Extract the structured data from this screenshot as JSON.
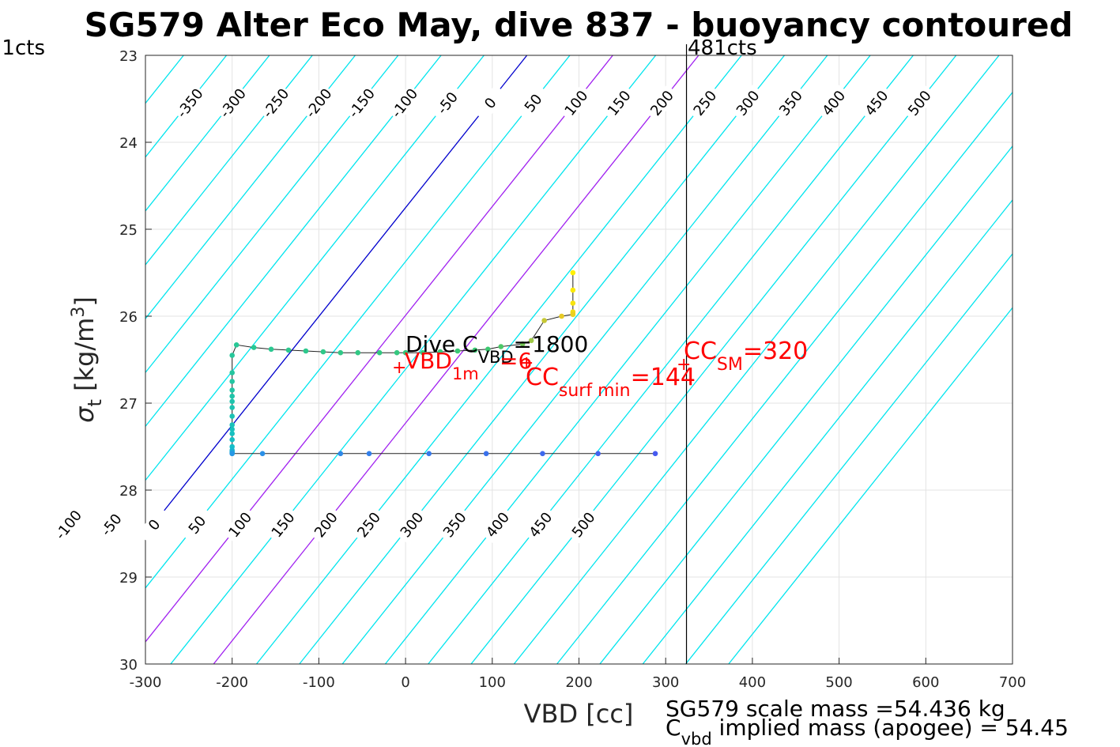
{
  "chart_data": {
    "type": "scatter",
    "title": "SG579 Alter Eco May, dive 837 - buoyancy contoured",
    "xlabel": "VBD [cc]",
    "ylabel_symbol": "σ",
    "ylabel_sub": "t",
    "ylabel_text": "[kg/m",
    "ylabel_sup": "3",
    "ylabel_close": "]",
    "xlim": [
      -300,
      700
    ],
    "ylim": [
      23,
      30
    ],
    "y_reversed": true,
    "grid": true,
    "xticks": [
      -300,
      -200,
      -100,
      0,
      100,
      200,
      300,
      400,
      500,
      600,
      700
    ],
    "yticks": [
      23,
      24,
      25,
      26,
      27,
      28,
      29,
      30
    ],
    "counts_left_label": "1cts",
    "counts_right_label": "481cts",
    "vline_vbd": 324,
    "contours": {
      "values": [
        -450,
        -400,
        -350,
        -300,
        -250,
        -200,
        -150,
        -100,
        -50,
        0,
        50,
        100,
        150,
        200,
        250,
        300,
        350,
        400,
        450,
        500,
        550,
        600,
        650,
        700,
        750,
        800
      ],
      "top_labels": [
        -350,
        -300,
        -250,
        -200,
        -150,
        -100,
        -50,
        0,
        50,
        100,
        150,
        200,
        250,
        300,
        350,
        400,
        450,
        500
      ],
      "bottom_labels": [
        -100,
        -50,
        0,
        50,
        100,
        150,
        200,
        250,
        300,
        350,
        400,
        450,
        500
      ],
      "zero_color": "#0000cd",
      "highlight_color": "#a020f0",
      "highlight_values": [
        100,
        200
      ],
      "other_color": "#00e5ee"
    },
    "series": [
      {
        "x": [
          193,
          193,
          193,
          193,
          193,
          193,
          180,
          160,
          145,
          135,
          110,
          95,
          80,
          60,
          40,
          20,
          0,
          -10,
          -30,
          -55,
          -75,
          -95,
          -115,
          -135,
          -155,
          -175,
          -195,
          -200,
          -200,
          -200,
          -200,
          -200,
          -200,
          -200,
          -200,
          -200,
          -200,
          -200,
          -200,
          -200,
          -200,
          -200,
          -200,
          -200,
          -200,
          -165,
          -75,
          -42,
          27,
          93,
          158,
          222,
          288
        ],
        "y": [
          25.5,
          25.7,
          25.85,
          25.95,
          25.97,
          25.98,
          26.0,
          26.05,
          26.28,
          26.32,
          26.35,
          26.38,
          26.39,
          26.4,
          26.41,
          26.42,
          26.42,
          26.42,
          26.42,
          26.42,
          26.42,
          26.41,
          26.4,
          26.39,
          26.38,
          26.36,
          26.33,
          26.45,
          26.65,
          26.75,
          26.85,
          26.92,
          26.98,
          27.05,
          27.15,
          27.25,
          27.3,
          27.35,
          27.42,
          27.5,
          27.54,
          27.56,
          27.57,
          27.58,
          27.58,
          27.58,
          27.58,
          27.58,
          27.58,
          27.58,
          27.58,
          27.58,
          27.58
        ]
      }
    ],
    "annotations": {
      "dive_c_pre": "Dive C",
      "dive_c_sub": "VBD",
      "dive_c_post": "=1800",
      "vbd1m_marker": "+",
      "vbd1m_main": "VBD",
      "vbd1m_sub": "1m",
      "vbd1m_tail": "=6",
      "cc_surf_marker": "+",
      "cc_surf_main": "CC",
      "cc_surf_sub": "surf min",
      "cc_surf_val": "=144",
      "cc_sm_marker": "+",
      "cc_sm_main": "CC",
      "cc_sm_sub": "SM",
      "cc_sm_val": "=320",
      "scale_mass": "SG579 scale mass =54.436 kg",
      "implied_main": "C",
      "implied_sub": "vbd",
      "implied_text": " implied mass (apogee) = 54.45"
    }
  }
}
